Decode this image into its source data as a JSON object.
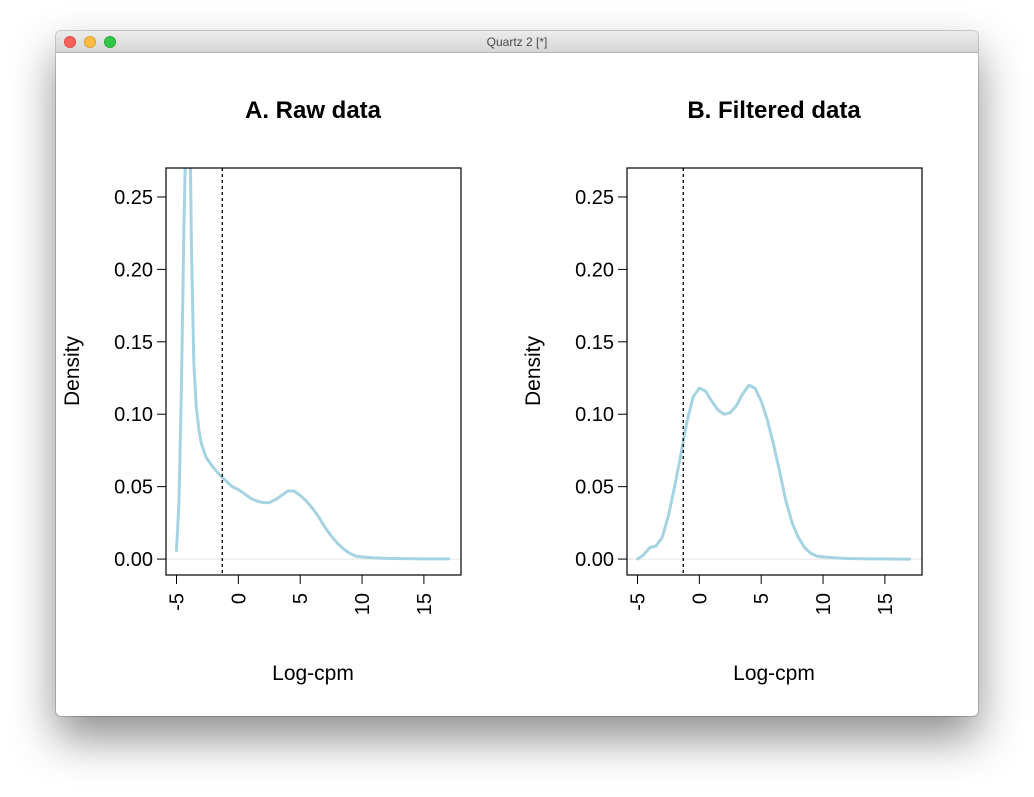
{
  "window": {
    "title": "Quartz 2 [*]"
  },
  "chart_data": [
    {
      "type": "line",
      "title": "A. Raw data",
      "xlabel": "Log-cpm",
      "ylabel": "Density",
      "xlim": [
        -5.85,
        18.0
      ],
      "ylim": [
        -0.011,
        0.27
      ],
      "xticks": [
        -5,
        0,
        5,
        10,
        15
      ],
      "yticks": [
        0.0,
        0.05,
        0.1,
        0.15,
        0.2,
        0.25
      ],
      "xtick_labels": [
        "-5",
        "0",
        "5",
        "10",
        "15"
      ],
      "ytick_labels": [
        "0.00",
        "0.05",
        "0.10",
        "0.15",
        "0.20",
        "0.25"
      ],
      "vline": -1.3,
      "grid": false,
      "colors": {
        "line": "#a6d3e2",
        "vline": "#000000",
        "baseline": "#e4e4e4"
      },
      "series": [
        {
          "x": [
            -5.0,
            -4.8,
            -4.6,
            -4.4,
            -4.25,
            -4.1,
            -4.0,
            -3.9,
            -3.8,
            -3.6,
            -3.4,
            -3.2,
            -3.0,
            -2.6,
            -2.0,
            -1.5,
            -1.0,
            -0.5,
            0.0,
            0.5,
            1.0,
            1.5,
            2.0,
            2.5,
            3.0,
            3.5,
            4.0,
            4.5,
            5.0,
            5.5,
            6.0,
            6.5,
            7.0,
            7.5,
            8.0,
            8.5,
            9.0,
            9.5,
            10.0,
            11.0,
            12.0,
            13.0,
            14.0,
            15.0,
            16.0,
            17.0
          ],
          "y": [
            0.006,
            0.04,
            0.12,
            0.23,
            0.29,
            0.29,
            0.29,
            0.29,
            0.22,
            0.135,
            0.105,
            0.09,
            0.08,
            0.07,
            0.063,
            0.058,
            0.054,
            0.05,
            0.048,
            0.045,
            0.042,
            0.04,
            0.039,
            0.039,
            0.041,
            0.044,
            0.047,
            0.047,
            0.044,
            0.04,
            0.035,
            0.029,
            0.022,
            0.016,
            0.011,
            0.007,
            0.004,
            0.002,
            0.0015,
            0.0008,
            0.0005,
            0.0003,
            0.0002,
            0.0001,
            0.0001,
            0.0001
          ]
        }
      ]
    },
    {
      "type": "line",
      "title": "B. Filtered data",
      "xlabel": "Log-cpm",
      "ylabel": "Density",
      "xlim": [
        -5.85,
        18.0
      ],
      "ylim": [
        -0.011,
        0.27
      ],
      "xticks": [
        -5,
        0,
        5,
        10,
        15
      ],
      "yticks": [
        0.0,
        0.05,
        0.1,
        0.15,
        0.2,
        0.25
      ],
      "xtick_labels": [
        "-5",
        "0",
        "5",
        "10",
        "15"
      ],
      "ytick_labels": [
        "0.00",
        "0.05",
        "0.10",
        "0.15",
        "0.20",
        "0.25"
      ],
      "vline": -1.3,
      "grid": false,
      "colors": {
        "line": "#a6d3e2",
        "vline": "#000000",
        "baseline": "#e4e4e4"
      },
      "series": [
        {
          "x": [
            -5.0,
            -4.5,
            -4.0,
            -3.5,
            -3.0,
            -2.5,
            -2.0,
            -1.5,
            -1.0,
            -0.5,
            0.0,
            0.5,
            1.0,
            1.5,
            2.0,
            2.5,
            3.0,
            3.5,
            4.0,
            4.5,
            5.0,
            5.5,
            6.0,
            6.5,
            7.0,
            7.5,
            8.0,
            8.5,
            9.0,
            9.5,
            10.0,
            11.0,
            12.0,
            13.0,
            14.0,
            15.0,
            16.0,
            17.0
          ],
          "y": [
            0.0,
            0.003,
            0.008,
            0.009,
            0.015,
            0.03,
            0.05,
            0.072,
            0.095,
            0.112,
            0.118,
            0.116,
            0.109,
            0.103,
            0.1,
            0.101,
            0.106,
            0.114,
            0.12,
            0.118,
            0.109,
            0.096,
            0.079,
            0.06,
            0.04,
            0.025,
            0.015,
            0.008,
            0.004,
            0.002,
            0.0015,
            0.0008,
            0.0004,
            0.0002,
            0.0001,
            0.0001,
            0.0,
            0.0
          ]
        }
      ]
    }
  ]
}
